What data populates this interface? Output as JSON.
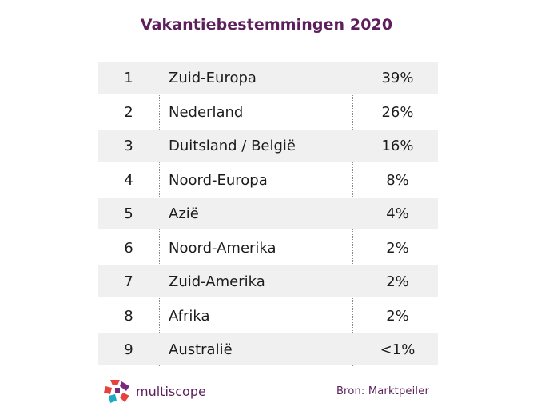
{
  "title": "Vakantiebestemmingen 2020",
  "rows": [
    {
      "rank": "1",
      "destination": "Zuid-Europa",
      "percent": "39%"
    },
    {
      "rank": "2",
      "destination": "Nederland",
      "percent": "26%"
    },
    {
      "rank": "3",
      "destination": "Duitsland / België",
      "percent": "16%"
    },
    {
      "rank": "4",
      "destination": "Noord-Europa",
      "percent": "8%"
    },
    {
      "rank": "5",
      "destination": "Azië",
      "percent": "4%"
    },
    {
      "rank": "6",
      "destination": "Noord-Amerika",
      "percent": "2%"
    },
    {
      "rank": "7",
      "destination": "Zuid-Amerika",
      "percent": "2%"
    },
    {
      "rank": "8",
      "destination": "Afrika",
      "percent": "2%"
    },
    {
      "rank": "9",
      "destination": "Australië",
      "percent": "<1%"
    }
  ],
  "footer": {
    "logo_text": "multiscope",
    "logo_icon": "multiscope-logo-icon",
    "source": "Bron: Marktpeiler"
  },
  "colors": {
    "title": "#5c1f5b",
    "row_shade": "#f0f0f0",
    "logo_red": "#e8423f",
    "logo_purple": "#7a2a7a",
    "logo_teal": "#1fa9c4"
  }
}
